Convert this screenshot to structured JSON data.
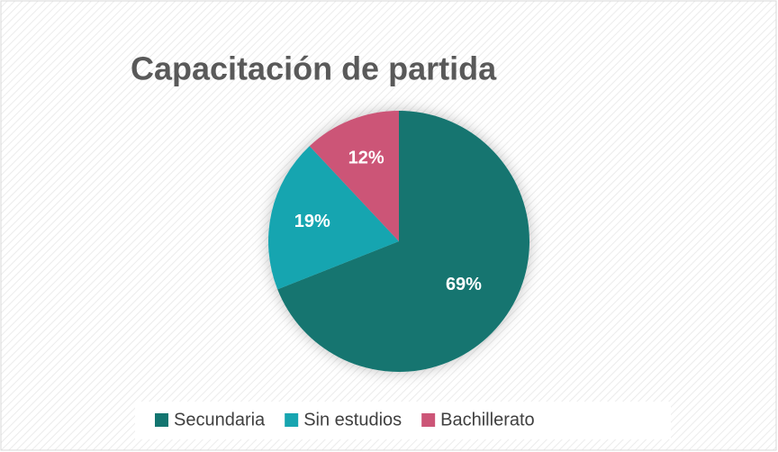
{
  "chart_data": {
    "type": "pie",
    "title": "Capacitación de partida",
    "categories": [
      "Secundaria",
      "Sin estudios",
      "Bachillerato"
    ],
    "values": [
      69,
      19,
      12
    ],
    "value_labels": [
      "69%",
      "19%",
      "12%"
    ],
    "colors": [
      "#137570",
      "#17a5b0",
      "#cc5577"
    ],
    "legend": "bottom"
  }
}
